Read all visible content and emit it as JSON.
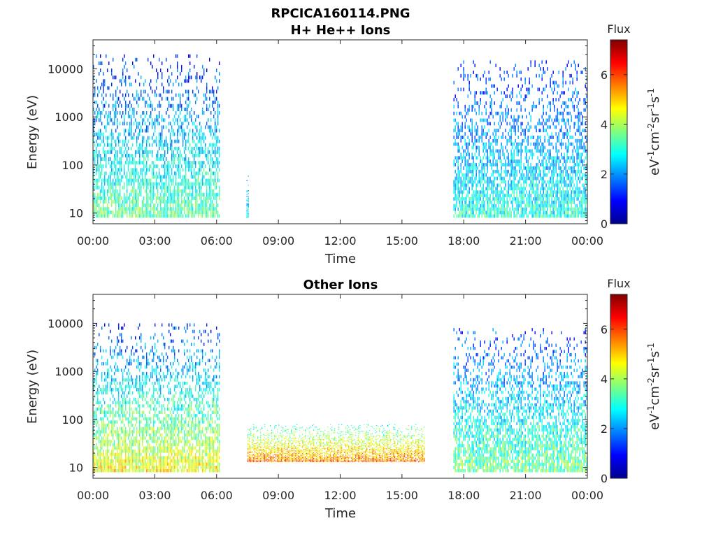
{
  "figure_title": "RPCICA160114.PNG",
  "colorbar": {
    "title": "Flux",
    "label_base": "eV",
    "label_parts": [
      {
        "t": "eV",
        "sup": false
      },
      {
        "t": "-1",
        "sup": true
      },
      {
        "t": "cm",
        "sup": false
      },
      {
        "t": "-2",
        "sup": true
      },
      {
        "t": "sr",
        "sup": false
      },
      {
        "t": "-1",
        "sup": true
      },
      {
        "t": "s",
        "sup": false
      },
      {
        "t": "-1",
        "sup": true
      }
    ],
    "ticks": [
      "0",
      "2",
      "4",
      "6"
    ],
    "tick_values": [
      0,
      2,
      4,
      6
    ],
    "range": [
      0,
      7.4
    ],
    "colormap": "jet"
  },
  "chart_data": [
    {
      "type": "heatmap",
      "title": "H+ He++ Ions",
      "xlabel": "Time",
      "ylabel": "Energy (eV)",
      "x_ticks": [
        "00:00",
        "03:00",
        "06:00",
        "09:00",
        "12:00",
        "15:00",
        "18:00",
        "21:00",
        "00:00"
      ],
      "x_tick_hours": [
        0,
        3,
        6,
        9,
        12,
        15,
        18,
        21,
        24
      ],
      "xlim_hours": [
        0,
        24
      ],
      "y_scale": "log",
      "y_ticks": [
        "10",
        "100",
        "1000",
        "10000"
      ],
      "y_tick_values": [
        10,
        100,
        1000,
        10000
      ],
      "ylim": [
        6,
        40000
      ],
      "data_blocks": [
        {
          "t_start": 0.0,
          "t_end": 6.15,
          "e_low": 8,
          "e_high": 20000,
          "flux_low_energy": 3.5,
          "flux_high_energy": 1.2
        },
        {
          "t_start": 7.45,
          "t_end": 7.55,
          "e_low": 8,
          "e_high": 60,
          "flux_low_energy": 2.6,
          "flux_high_energy": 2.2
        },
        {
          "t_start": 17.5,
          "t_end": 24.0,
          "e_low": 8,
          "e_high": 15000,
          "flux_low_energy": 3.0,
          "flux_high_energy": 1.2
        }
      ]
    },
    {
      "type": "heatmap",
      "title": "Other Ions",
      "xlabel": "Time",
      "ylabel": "Energy (eV)",
      "x_ticks": [
        "00:00",
        "03:00",
        "06:00",
        "09:00",
        "12:00",
        "15:00",
        "18:00",
        "21:00",
        "00:00"
      ],
      "x_tick_hours": [
        0,
        3,
        6,
        9,
        12,
        15,
        18,
        21,
        24
      ],
      "xlim_hours": [
        0,
        24
      ],
      "y_scale": "log",
      "y_ticks": [
        "10",
        "100",
        "1000",
        "10000"
      ],
      "y_tick_values": [
        10,
        100,
        1000,
        10000
      ],
      "ylim": [
        6,
        40000
      ],
      "data_blocks": [
        {
          "t_start": 0.0,
          "t_end": 6.15,
          "e_low": 8,
          "e_high": 10000,
          "flux_low_energy": 4.6,
          "flux_high_energy": 1.3
        },
        {
          "t_start": 7.5,
          "t_end": 16.1,
          "e_low": 13,
          "e_high": 80,
          "flux_low_energy": 5.6,
          "flux_high_energy": 3.0
        },
        {
          "t_start": 17.5,
          "t_end": 24.0,
          "e_low": 8,
          "e_high": 8000,
          "flux_low_energy": 3.6,
          "flux_high_energy": 1.3
        }
      ]
    }
  ]
}
